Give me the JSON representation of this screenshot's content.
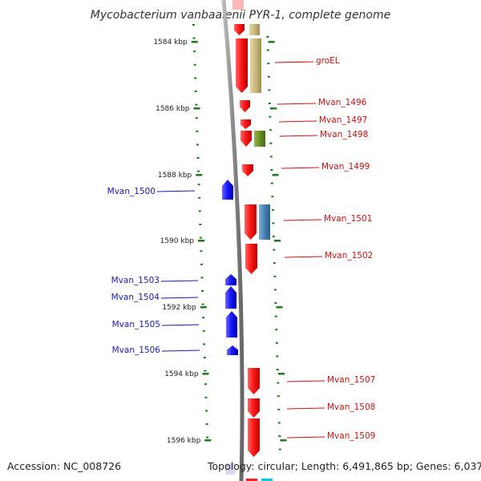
{
  "title": "Mycobacterium vanbaalenii PYR-1, complete genome",
  "footer": {
    "accession": "Accession: NC_008726",
    "topology": "Topology: circular; Length: 6,491,865 bp; Genes: 6,037"
  },
  "colors": {
    "forward_gene": "#ff1a1a",
    "reverse_gene": "#1a1aff",
    "reverse_label": "#1a1ab0",
    "forward_label": "#cc1111",
    "tick": "#1f7a1f",
    "backbone": "#888888",
    "cog_khaki": "#c8b97a",
    "cog_olive": "#6b8f23",
    "cog_steelblue": "#4682b4"
  },
  "axis_ticks": [
    {
      "label": "1584 kbp"
    },
    {
      "label": "1586 kbp"
    },
    {
      "label": "1588 kbp"
    },
    {
      "label": "1590 kbp"
    },
    {
      "label": "1592 kbp"
    },
    {
      "label": "1594 kbp"
    },
    {
      "label": "1596 kbp"
    }
  ],
  "genes_forward": [
    {
      "label": "groEL",
      "cog_color": "khaki"
    },
    {
      "label": "Mvan_1496",
      "cog_color": ""
    },
    {
      "label": "Mvan_1497",
      "cog_color": ""
    },
    {
      "label": "Mvan_1498",
      "cog_color": "olive"
    },
    {
      "label": "Mvan_1499",
      "cog_color": ""
    },
    {
      "label": "Mvan_1501",
      "cog_color": "steelblue"
    },
    {
      "label": "Mvan_1502",
      "cog_color": ""
    },
    {
      "label": "Mvan_1507",
      "cog_color": ""
    },
    {
      "label": "Mvan_1508",
      "cog_color": ""
    },
    {
      "label": "Mvan_1509",
      "cog_color": ""
    }
  ],
  "genes_reverse": [
    {
      "label": "Mvan_1500"
    },
    {
      "label": "Mvan_1503"
    },
    {
      "label": "Mvan_1504"
    },
    {
      "label": "Mvan_1505"
    },
    {
      "label": "Mvan_1506"
    }
  ]
}
